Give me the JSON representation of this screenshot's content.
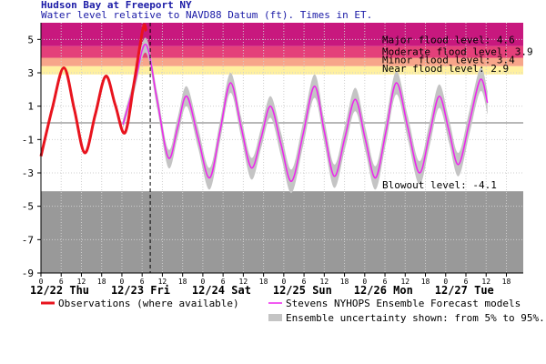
{
  "chart_data": {
    "type": "line",
    "title": "Hudson Bay at Freeport NY",
    "subtitle": "Water level relative to NAVD88 Datum (ft). Times in ET.",
    "xlim": [
      0,
      143
    ],
    "ylim": [
      -9,
      6
    ],
    "yticks": [
      5,
      3,
      1,
      -1,
      -3,
      -5,
      -7,
      -9
    ],
    "xticks": [
      {
        "value": 0,
        "label": "0"
      },
      {
        "value": 6,
        "label": "6"
      },
      {
        "value": 12,
        "label": "12"
      },
      {
        "value": 18,
        "label": "18"
      },
      {
        "value": 24,
        "label": "0"
      },
      {
        "value": 30,
        "label": "6"
      },
      {
        "value": 36,
        "label": "12"
      },
      {
        "value": 42,
        "label": "18"
      },
      {
        "value": 48,
        "label": "0"
      },
      {
        "value": 54,
        "label": "6"
      },
      {
        "value": 60,
        "label": "12"
      },
      {
        "value": 66,
        "label": "18"
      },
      {
        "value": 72,
        "label": "0"
      },
      {
        "value": 78,
        "label": "6"
      },
      {
        "value": 84,
        "label": "12"
      },
      {
        "value": 90,
        "label": "18"
      },
      {
        "value": 96,
        "label": "0"
      },
      {
        "value": 102,
        "label": "6"
      },
      {
        "value": 108,
        "label": "12"
      },
      {
        "value": 114,
        "label": "18"
      },
      {
        "value": 120,
        "label": "0"
      },
      {
        "value": 126,
        "label": "6"
      },
      {
        "value": 132,
        "label": "12"
      },
      {
        "value": 138,
        "label": "18"
      }
    ],
    "day_labels": [
      {
        "x": 0,
        "label": "12/22 Thu"
      },
      {
        "x": 24,
        "label": "12/23 Fri"
      },
      {
        "x": 48,
        "label": "12/24 Sat"
      },
      {
        "x": 72,
        "label": "12/25 Sun"
      },
      {
        "x": 96,
        "label": "12/26 Mon"
      },
      {
        "x": 120,
        "label": "12/27 Tue"
      }
    ],
    "grid": true,
    "flood_levels": [
      {
        "label": "Near flood level: 2.9",
        "value": 2.9,
        "color": "#fff0a0"
      },
      {
        "label": "Minor flood level: 3.4",
        "value": 3.4,
        "color": "#f7a58a"
      },
      {
        "label": "Moderate flood level: 3.9",
        "value": 3.9,
        "color": "#e4407a"
      },
      {
        "label": "Major flood level: 4.6",
        "value": 4.6,
        "color": "#c8187e"
      }
    ],
    "blowout_level": {
      "label": "Blowout level: -4.1",
      "value": -4.1,
      "color": "#999999"
    },
    "now_line": 32.4,
    "series": [
      {
        "name": "Observations (where available)",
        "color": "#e8141e",
        "x": [
          0,
          3.4,
          6.8,
          9.9,
          13,
          16.1,
          19.2,
          22,
          24.9,
          27.6,
          30.3,
          31.2
        ],
        "values": [
          -2.0,
          0.9,
          3.3,
          0.8,
          -1.8,
          0.5,
          2.8,
          1.1,
          -0.6,
          2.4,
          5.7,
          5.5
        ]
      },
      {
        "name": "Stevens NYHOPS Ensemble Forecast models",
        "color": "#ee22ee",
        "x": [
          24.3,
          27.7,
          31.1,
          34.5,
          37.8,
          40.5,
          43.2,
          46.6,
          50,
          53.1,
          56.2,
          59.3,
          62.4,
          65.3,
          68.1,
          71.2,
          74.3,
          77.7,
          81.1,
          84,
          87,
          90.1,
          93.2,
          96.2,
          99.2,
          102.3,
          105.4,
          108.8,
          112.2,
          115.2,
          118.1,
          121,
          123.8,
          127,
          130.3,
          132.4
        ],
        "values": [
          -0.1,
          2.3,
          4.7,
          1.3,
          -2.1,
          -0.3,
          1.6,
          -0.9,
          -3.3,
          -0.5,
          2.4,
          -0.2,
          -2.7,
          -0.9,
          1.0,
          -1.3,
          -3.5,
          -0.7,
          2.2,
          -0.5,
          -3.2,
          -0.9,
          1.4,
          -1.0,
          -3.3,
          -0.5,
          2.4,
          -0.3,
          -3.0,
          -0.7,
          1.6,
          -0.5,
          -2.5,
          0.0,
          2.6,
          1.2
        ]
      },
      {
        "name": "Ensemble uncertainty shown: from 5% to 95%.",
        "color": "#c4c4c4",
        "x": [
          24.3,
          27.7,
          31.1,
          34.5,
          37.8,
          40.5,
          43.2,
          46.6,
          50,
          53.1,
          56.2,
          59.3,
          62.4,
          65.3,
          68.1,
          71.2,
          74.3,
          77.7,
          81.1,
          84,
          87,
          90.1,
          93.2,
          96.2,
          99.2,
          102.3,
          105.4,
          108.8,
          112.2,
          115.2,
          118.1,
          121,
          123.8,
          127,
          130.3,
          132.4
        ],
        "high": [
          0.2,
          2.7,
          5.1,
          1.8,
          -1.6,
          0.3,
          2.2,
          -0.3,
          -2.7,
          0.1,
          3.0,
          0.4,
          -2.1,
          -0.3,
          1.6,
          -0.6,
          -2.8,
          0.0,
          2.9,
          0.2,
          -2.5,
          -0.2,
          2.1,
          -0.3,
          -2.6,
          0.2,
          3.1,
          0.4,
          -2.3,
          0.0,
          2.3,
          0.2,
          -1.8,
          0.7,
          3.3,
          1.9
        ],
        "low": [
          -0.4,
          1.9,
          4.2,
          0.8,
          -2.7,
          -0.9,
          1.0,
          -1.5,
          -4.0,
          -1.1,
          1.8,
          -0.8,
          -3.4,
          -1.5,
          0.3,
          -2.0,
          -4.2,
          -1.4,
          1.5,
          -1.2,
          -3.9,
          -1.6,
          0.7,
          -1.7,
          -4.0,
          -1.2,
          1.7,
          -1.0,
          -3.7,
          -1.4,
          0.9,
          -1.2,
          -3.2,
          -0.7,
          1.9,
          0.5
        ]
      }
    ]
  }
}
